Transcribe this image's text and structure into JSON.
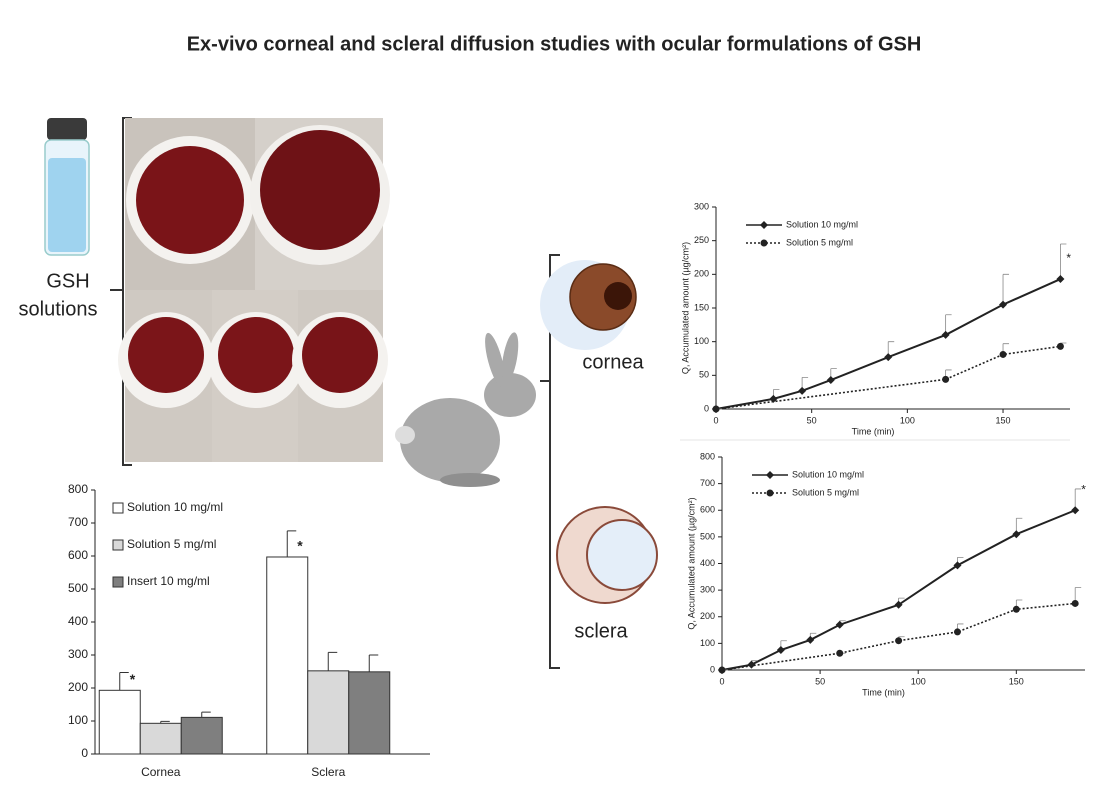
{
  "title": "Ex-vivo corneal and scleral diffusion studies with ocular formulations of GSH",
  "labels": {
    "solutions": [
      "GSH",
      "solutions"
    ],
    "cornea": "cornea",
    "sclera": "sclera"
  },
  "chart_data": [
    {
      "type": "bar",
      "categories": [
        "Cornea",
        "Sclera"
      ],
      "series": [
        {
          "name": "Solution 10 mg/ml",
          "color": "#ffffff",
          "values": [
            193,
            597
          ],
          "errors": [
            54,
            79
          ]
        },
        {
          "name": "Solution  5 mg/ml",
          "color": "#d9d9d9",
          "values": [
            93,
            252
          ],
          "errors": [
            6,
            56
          ]
        },
        {
          "name": "Insert 10 mg/ml",
          "color": "#7f7f7f",
          "values": [
            111,
            249
          ],
          "errors": [
            16,
            51
          ]
        }
      ],
      "ylim": [
        0,
        800
      ],
      "yticks": [
        0,
        100,
        200,
        300,
        400,
        500,
        600,
        700,
        800
      ],
      "annotations": [
        "*",
        "*"
      ]
    },
    {
      "type": "line",
      "xlabel": "Time (min)",
      "ylabel": "Q, Accumulated amount (µg/cm²)",
      "xlim": [
        0,
        185
      ],
      "xticks": [
        0,
        50,
        100,
        150
      ],
      "ylim": [
        0,
        300
      ],
      "yticks": [
        0,
        50,
        100,
        150,
        200,
        250,
        300
      ],
      "series": [
        {
          "name": "Solution 10 mg/ml",
          "color": "#222222",
          "marker": "diamond",
          "dash": "solid",
          "x": [
            0,
            30,
            45,
            60,
            90,
            120,
            150,
            180
          ],
          "values": [
            0,
            15,
            27,
            43,
            77,
            110,
            155,
            193
          ],
          "errors": [
            0,
            14,
            20,
            17,
            23,
            30,
            45,
            52
          ]
        },
        {
          "name": "Solution 5 mg/ml",
          "color": "#222222",
          "marker": "circle",
          "dash": "dotted",
          "x": [
            0,
            120,
            150,
            180
          ],
          "values": [
            0,
            44,
            81,
            93
          ],
          "errors": [
            0,
            14,
            16,
            5
          ]
        }
      ],
      "annotations": [
        "*"
      ]
    },
    {
      "type": "line",
      "xlabel": "Time (min)",
      "ylabel": "Q, Accumulated amount (µg/cm²)",
      "xlim": [
        0,
        185
      ],
      "xticks": [
        0,
        50,
        100,
        150
      ],
      "ylim": [
        0,
        800
      ],
      "yticks": [
        0,
        100,
        200,
        300,
        400,
        500,
        600,
        700,
        800
      ],
      "series": [
        {
          "name": "Solution 10 mg/ml",
          "color": "#222222",
          "marker": "diamond",
          "dash": "solid",
          "x": [
            0,
            15,
            30,
            45,
            60,
            90,
            120,
            150,
            180
          ],
          "values": [
            0,
            20,
            75,
            113,
            170,
            245,
            393,
            510,
            600
          ],
          "errors": [
            0,
            15,
            35,
            25,
            15,
            25,
            30,
            60,
            80
          ]
        },
        {
          "name": "Solution 5 mg/ml",
          "color": "#222222",
          "marker": "circle",
          "dash": "dotted",
          "x": [
            0,
            60,
            90,
            120,
            150,
            180
          ],
          "values": [
            0,
            63,
            110,
            143,
            228,
            250
          ],
          "errors": [
            0,
            0,
            15,
            30,
            35,
            60
          ]
        }
      ],
      "annotations": [
        "*"
      ]
    }
  ]
}
